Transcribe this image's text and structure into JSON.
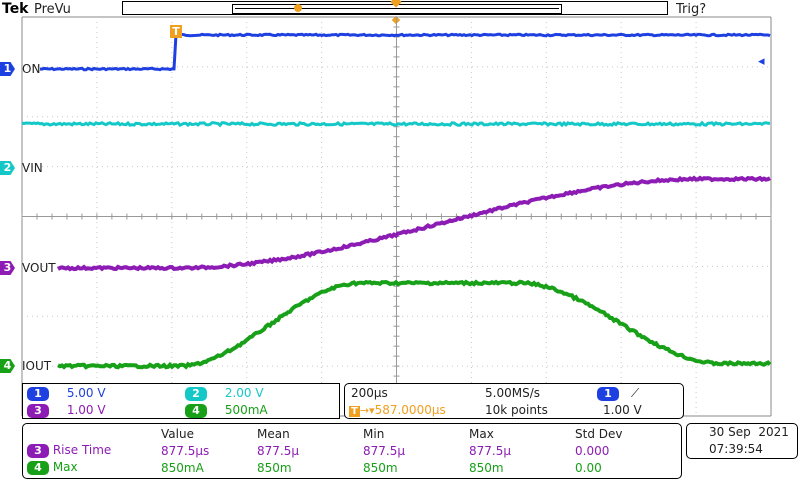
{
  "header": {
    "brand": "Tek",
    "mode": "PreVu",
    "trigger_status": "Trig?"
  },
  "colors": {
    "ch1": "#1e40e0",
    "ch2": "#14c8c8",
    "ch3": "#8c1cb4",
    "ch4": "#18a018",
    "trigger": "#f0a020",
    "grid": "#c8c8c8"
  },
  "channels": [
    {
      "num": "1",
      "label": "ON"
    },
    {
      "num": "2",
      "label": "VIN"
    },
    {
      "num": "3",
      "label": "VOUT"
    },
    {
      "num": "4",
      "label": "IOUT"
    }
  ],
  "trigger_marker": "T",
  "scales": {
    "ch1": {
      "num": "1",
      "value": "5.00 V"
    },
    "ch2": {
      "num": "2",
      "value": "2.00 V"
    },
    "ch3": {
      "num": "3",
      "value": "1.00 V"
    },
    "ch4": {
      "num": "4",
      "value": "500mA"
    }
  },
  "timebase": {
    "time_div": "200µs",
    "sample_rate": "5.00MS/s",
    "trigger_source": "1",
    "trigger_slope": "⟋",
    "trigger_position": "587.0000µs",
    "trigger_pos_icon": "T",
    "record_length": "10k points",
    "trigger_level": "1.00 V"
  },
  "measurements": {
    "headers": [
      "Value",
      "Mean",
      "Min",
      "Max",
      "Std Dev"
    ],
    "rows": [
      {
        "ch": "3",
        "name": "Rise Time",
        "value": "877.5µs",
        "mean": "877.5µ",
        "min": "877.5µ",
        "max": "877.5µ",
        "stddev": "0.000"
      },
      {
        "ch": "4",
        "name": "Max",
        "value": "850mA",
        "mean": "850m",
        "min": "850m",
        "max": "850m",
        "stddev": "0.00"
      }
    ]
  },
  "datetime": {
    "date": "30 Sep  2021",
    "time": "07:39:54"
  }
}
